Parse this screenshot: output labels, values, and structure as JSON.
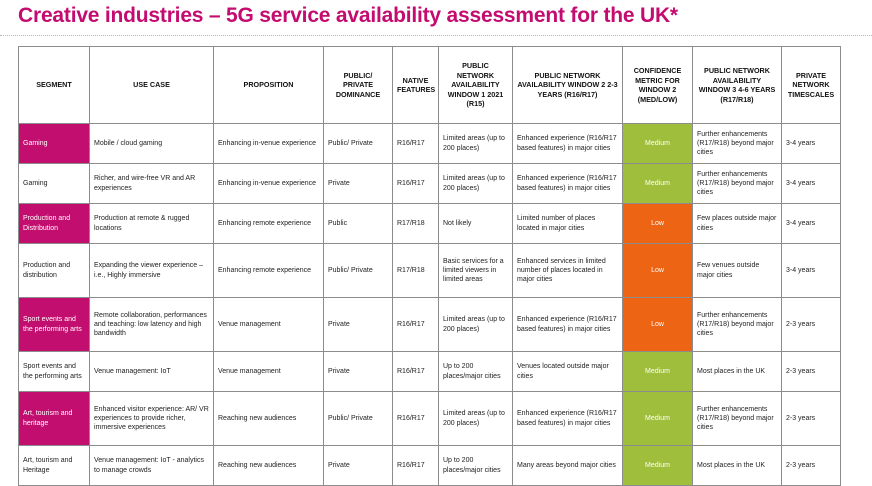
{
  "title": "Creative industries – 5G service availability assessment for the UK*",
  "colors": {
    "title": "#c40c70",
    "segment_highlight": "#c20e6e",
    "medium": "#9fbe3b",
    "low": "#ec6414"
  },
  "table": {
    "headers": [
      "SEGMENT",
      "USE CASE",
      "PROPOSITION",
      "PUBLIC/ PRIVATE DOMINANCE",
      "NATIVE FEATURES",
      "PUBLIC NETWORK AVAILABILITY WINDOW 1 2021 (R15)",
      "PUBLIC NETWORK AVAILABILITY WINDOW 2 2-3 YEARS (R16/R17)",
      "CONFIDENCE METRIC FOR WINDOW 2 (MED/LOW)",
      "PUBLIC NETWORK AVAILABILITY WINDOW 3 4-6 YEARS (R17/R18)",
      "PRIVATE NETWORK TIMESCALES"
    ],
    "rows": [
      {
        "segment": "Gaming",
        "segment_highlight": true,
        "use_case": "Mobile / cloud gaming",
        "proposition": "Enhancing in-venue experience",
        "dominance": "Public/ Private",
        "features": "R16/R17",
        "window1": "Limited areas (up to 200 places)",
        "window2": "Enhanced experience (R16/R17 based features) in major cities",
        "confidence": "Medium",
        "confidence_level": "medium",
        "window3": "Further enhancements (R17/R18) beyond major cities",
        "private": "3-4 years"
      },
      {
        "segment": "Gaming",
        "segment_highlight": false,
        "use_case": "Richer, and wire-free VR and AR experiences",
        "proposition": "Enhancing in-venue experience",
        "dominance": "Private",
        "features": "R16/R17",
        "window1": "Limited areas (up to 200 places)",
        "window2": "Enhanced experience (R16/R17 based features) in major cities",
        "confidence": "Medium",
        "confidence_level": "medium",
        "window3": "Further enhancements (R17/R18) beyond major cities",
        "private": "3-4 years"
      },
      {
        "segment": "Production and Distribution",
        "segment_highlight": true,
        "use_case": "Production at remote & rugged locations",
        "proposition": "Enhancing remote experience",
        "dominance": "Public",
        "features": "R17/R18",
        "window1": "Not likely",
        "window2": "Limited number of places located in major cities",
        "confidence": "Low",
        "confidence_level": "low",
        "window3": "Few places outside major cities",
        "private": "3-4 years"
      },
      {
        "segment": "Production and distribution",
        "segment_highlight": false,
        "use_case": "Expanding the viewer experience – i.e., Highly immersive",
        "proposition": "Enhancing remote experience",
        "dominance": "Public/ Private",
        "features": "R17/R18",
        "window1": "Basic services for a limited viewers in limited areas",
        "window2": "Enhanced services in limited number of places located in major cities",
        "confidence": "Low",
        "confidence_level": "low",
        "window3": "Few venues outside major cities",
        "private": "3-4 years"
      },
      {
        "segment": "Sport events and the performing arts",
        "segment_highlight": true,
        "use_case": "Remote collaboration, performances and teaching: low latency and high bandwidth",
        "proposition": "Venue management",
        "dominance": "Private",
        "features": "R16/R17",
        "window1": "Limited areas (up to 200 places)",
        "window2": "Enhanced experience (R16/R17 based features) in major cities",
        "confidence": "Low",
        "confidence_level": "low",
        "window3": "Further enhancements (R17/R18) beyond major cities",
        "private": "2-3 years"
      },
      {
        "segment": "Sport events and the performing arts",
        "segment_highlight": false,
        "use_case": "Venue management: IoT",
        "proposition": "Venue management",
        "dominance": "Private",
        "features": "R16/R17",
        "window1": "Up to 200 places/major cities",
        "window2": "Venues located outside major cities",
        "confidence": "Medium",
        "confidence_level": "medium",
        "window3": "Most places in the UK",
        "private": "2-3 years"
      },
      {
        "segment": "Art, tourism and heritage",
        "segment_highlight": true,
        "use_case": "Enhanced visitor experience: AR/ VR experiences to provide richer, immersive experiences",
        "proposition": "Reaching new audiences",
        "dominance": "Public/ Private",
        "features": "R16/R17",
        "window1": "Limited areas (up to 200 places)",
        "window2": "Enhanced experience (R16/R17 based features) in major cities",
        "confidence": "Medium",
        "confidence_level": "medium",
        "window3": "Further enhancements (R17/R18) beyond major cities",
        "private": "2-3 years"
      },
      {
        "segment": "Art, tourism and Heritage",
        "segment_highlight": false,
        "use_case": "Venue management: IoT - analytics to manage crowds",
        "proposition": "Reaching new audiences",
        "dominance": "Private",
        "features": "R16/R17",
        "window1": "Up to 200 places/major cities",
        "window2": "Many areas beyond major cities",
        "confidence": "Medium",
        "confidence_level": "medium",
        "window3": "Most places in the UK",
        "private": "2-3 years"
      }
    ]
  }
}
